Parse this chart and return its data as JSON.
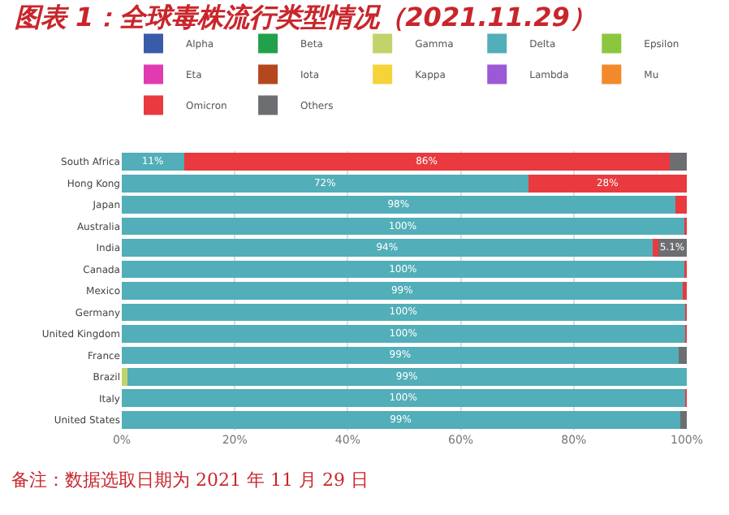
{
  "chart_data": {
    "type": "bar",
    "orientation": "horizontal",
    "stacked": true,
    "title": "图表 1：全球毒株流行类型情况（2021.11.29）",
    "annotations": [
      "备注：数据选取日期为 2021 年 11 月 29 日"
    ],
    "categories": [
      "South Africa",
      "Hong Kong",
      "Japan",
      "Australia",
      "India",
      "Canada",
      "Mexico",
      "Germany",
      "United Kingdom",
      "France",
      "Brazil",
      "Italy",
      "United States"
    ],
    "series": [
      {
        "name": "Alpha",
        "color": "#3a5ba8",
        "values": [
          0,
          0,
          0,
          0,
          0,
          0,
          0,
          0,
          0,
          0,
          0,
          0,
          0
        ]
      },
      {
        "name": "Beta",
        "color": "#22a04b",
        "values": [
          0,
          0,
          0,
          0,
          0,
          0,
          0,
          0,
          0,
          0,
          0,
          0,
          0
        ]
      },
      {
        "name": "Gamma",
        "color": "#c2d36b",
        "values": [
          0,
          0,
          0,
          0,
          0,
          0,
          0,
          0,
          0,
          0,
          1,
          0,
          0
        ]
      },
      {
        "name": "Delta",
        "color": "#52aeb8",
        "values": [
          11,
          72,
          98,
          99.5,
          94,
          99.6,
          99.3,
          99.7,
          99.7,
          98.6,
          99,
          99.7,
          98.8
        ],
        "value_labels": [
          "11%",
          "72%",
          "98%",
          "100%",
          "94%",
          "100%",
          "99%",
          "100%",
          "100%",
          "99%",
          "99%",
          "100%",
          "99%"
        ]
      },
      {
        "name": "Epsilon",
        "color": "#8cc63f",
        "values": [
          0,
          0,
          0,
          0,
          0,
          0,
          0,
          0,
          0,
          0,
          0,
          0,
          0
        ]
      },
      {
        "name": "Eta",
        "color": "#e03bb0",
        "values": [
          0,
          0,
          0,
          0,
          0,
          0,
          0,
          0,
          0,
          0,
          0,
          0,
          0
        ]
      },
      {
        "name": "Iota",
        "color": "#b5471f",
        "values": [
          0,
          0,
          0,
          0,
          0,
          0,
          0,
          0,
          0,
          0,
          0,
          0,
          0
        ]
      },
      {
        "name": "Kappa",
        "color": "#f7d33a",
        "values": [
          0,
          0,
          0,
          0,
          0,
          0,
          0,
          0,
          0,
          0,
          0,
          0,
          0
        ]
      },
      {
        "name": "Lambda",
        "color": "#9b59d6",
        "values": [
          0,
          0,
          0,
          0,
          0,
          0,
          0,
          0,
          0,
          0,
          0,
          0,
          0
        ]
      },
      {
        "name": "Mu",
        "color": "#f28a2a",
        "values": [
          0,
          0,
          0,
          0,
          0,
          0,
          0,
          0,
          0,
          0,
          0,
          0,
          0
        ]
      },
      {
        "name": "Omicron",
        "color": "#e83a3f",
        "values": [
          86,
          28,
          2,
          0.5,
          0.9,
          0.4,
          0.7,
          0.3,
          0.3,
          0,
          0,
          0.3,
          0
        ],
        "value_labels": [
          "86%",
          "28%",
          null,
          null,
          null,
          null,
          null,
          null,
          null,
          null,
          null,
          null,
          null
        ]
      },
      {
        "name": "Others",
        "color": "#6d6e72",
        "values": [
          3,
          0,
          0,
          0,
          5.1,
          0,
          0,
          0,
          0,
          1.4,
          0,
          0,
          1.2
        ],
        "value_labels": [
          null,
          null,
          null,
          null,
          "5.1%",
          null,
          null,
          null,
          null,
          null,
          null,
          null,
          null
        ]
      }
    ],
    "xlim": [
      0,
      100
    ],
    "xticks": [
      {
        "value": 0,
        "label": "0%"
      },
      {
        "value": 20,
        "label": "20%"
      },
      {
        "value": 40,
        "label": "40%"
      },
      {
        "value": 60,
        "label": "60%"
      },
      {
        "value": 80,
        "label": "80%"
      },
      {
        "value": 100,
        "label": "100%"
      }
    ],
    "grid": "x",
    "legend": "top"
  }
}
